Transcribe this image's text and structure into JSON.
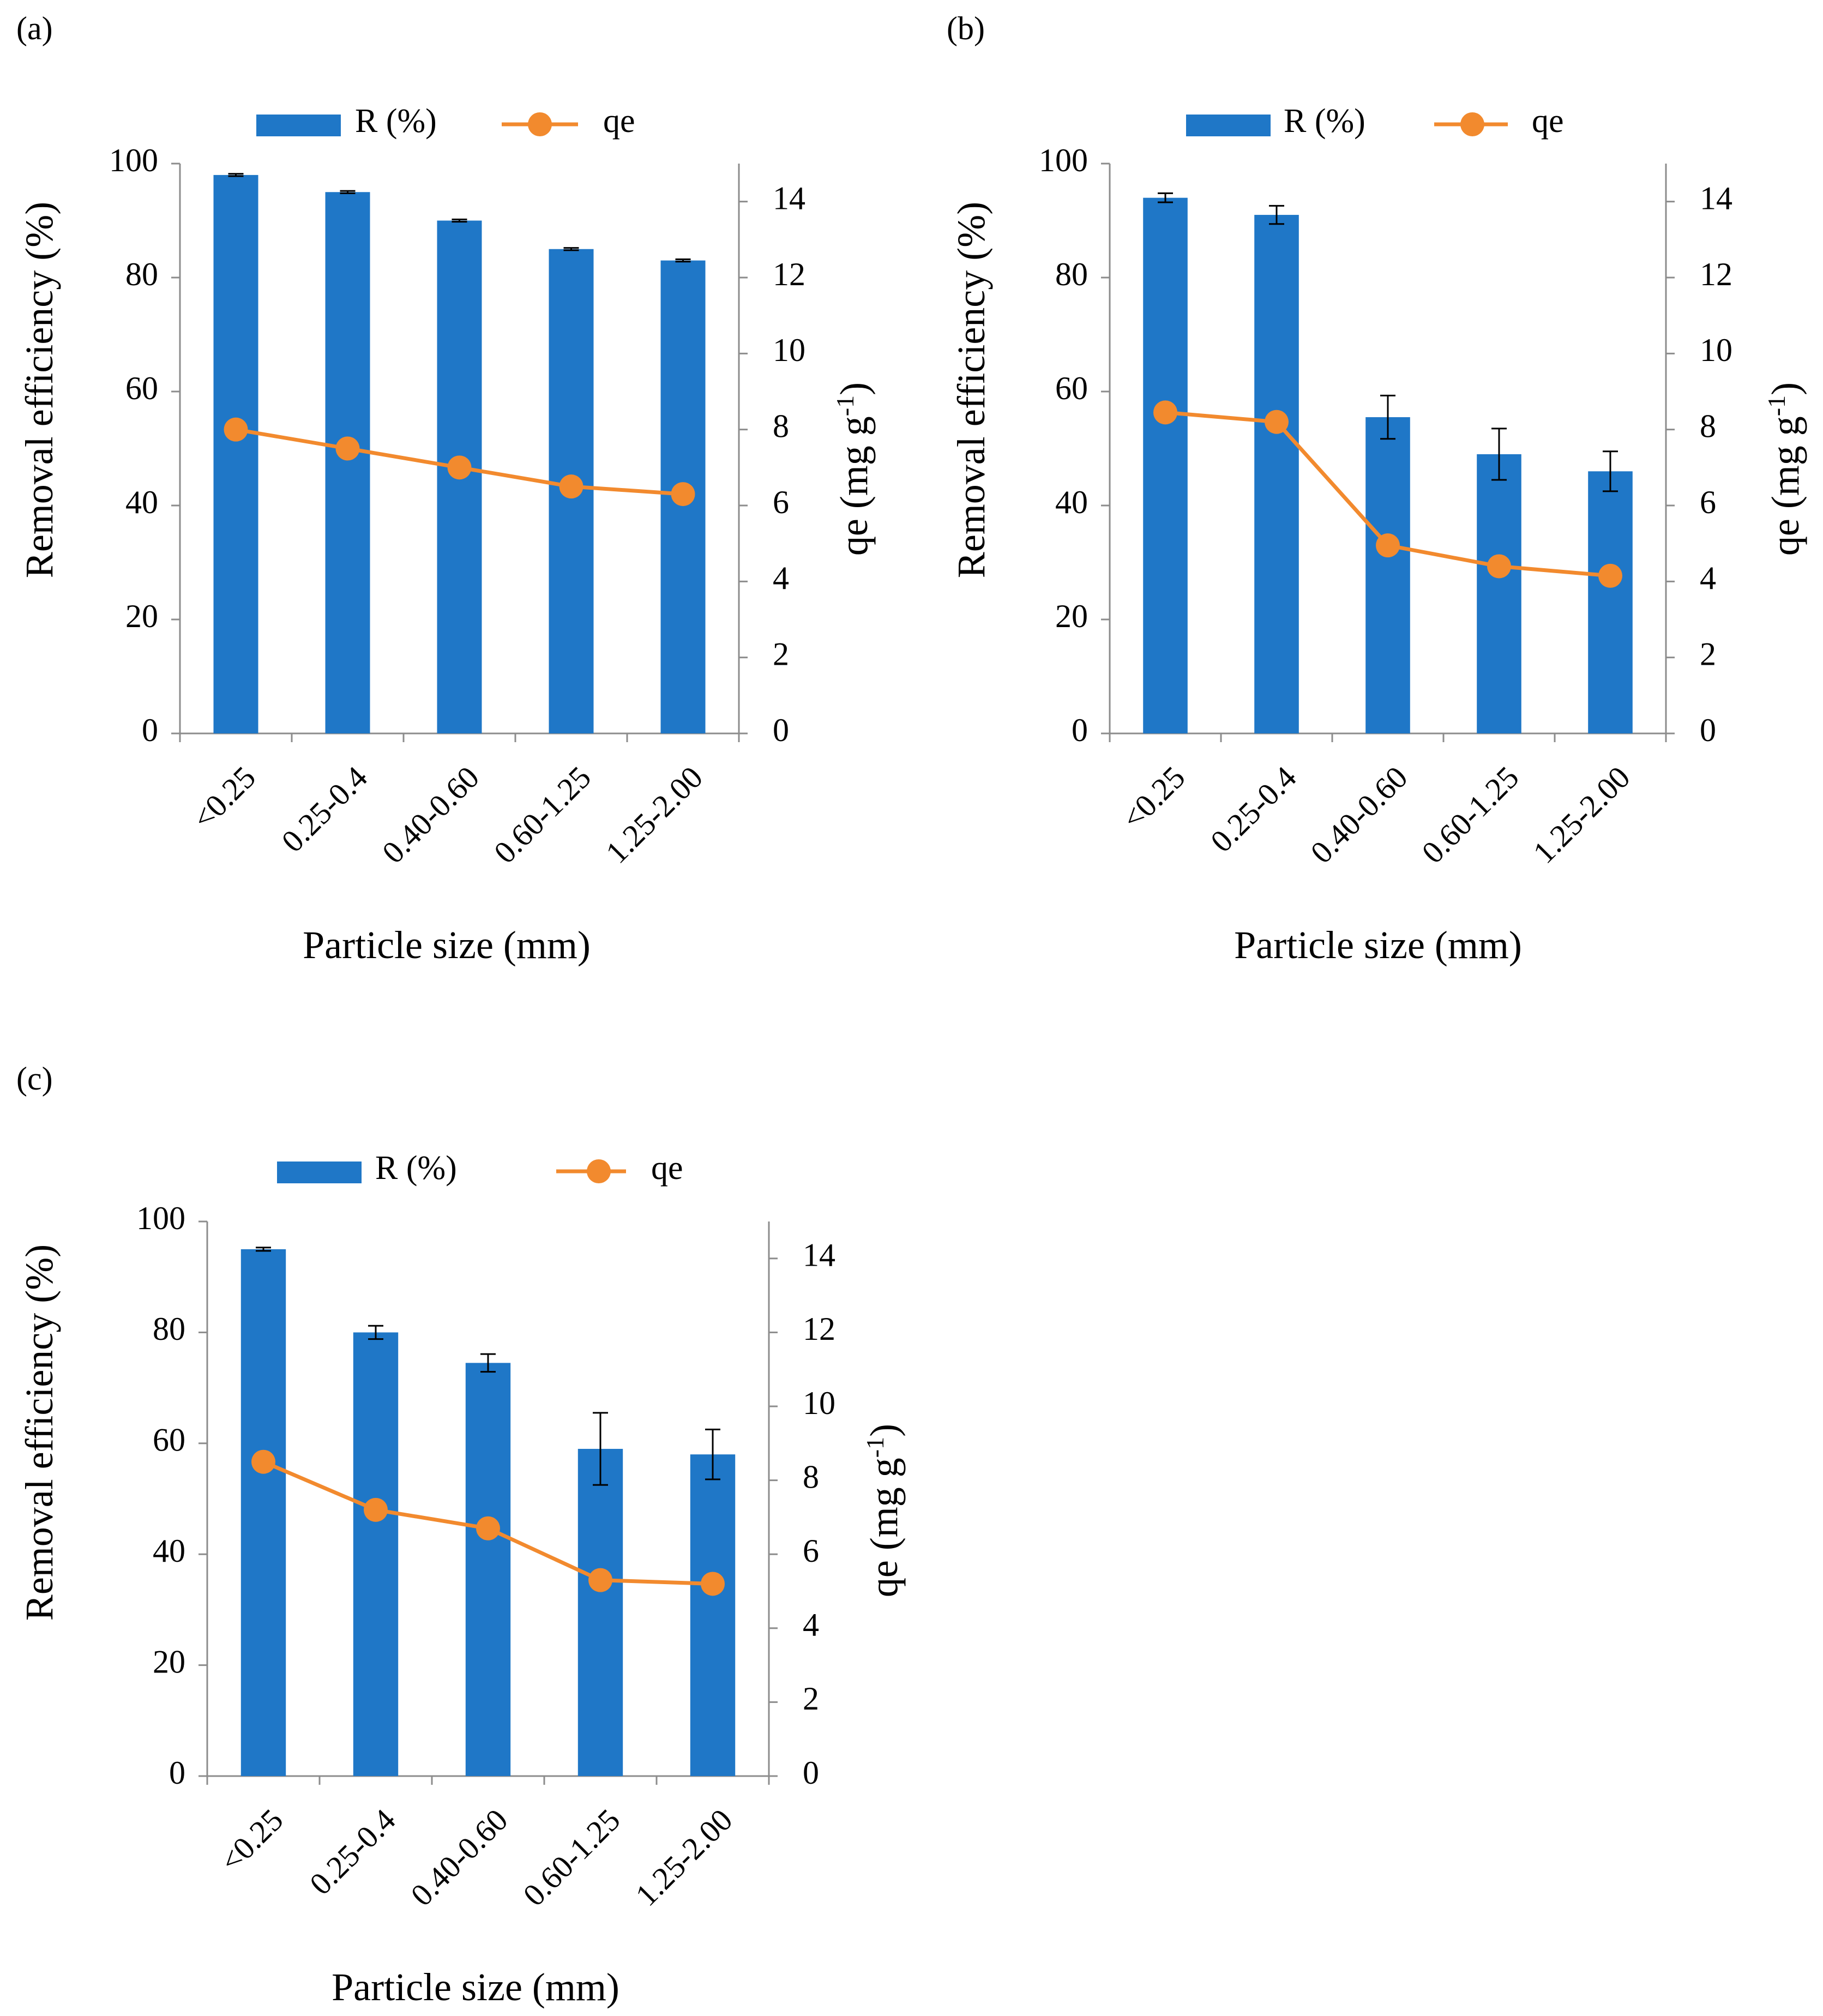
{
  "figure": {
    "panels": [
      {
        "label": "(a)",
        "label_letter": "a",
        "colors": {
          "bar": "#1f77c7",
          "line": "#f28a2e",
          "error": "#000000"
        },
        "chart_data": {
          "type": "bar",
          "categories": [
            "<0.25",
            "0.25-0.4",
            "0.40-0.60",
            "0.60-1.25",
            "1.25-2.00"
          ],
          "xlabel": "Particle size (mm)",
          "ylabel": "Removal efficiency (%)",
          "y2label_main": "qe (mg g",
          "y2label_sup": "-1",
          "y2label_close": ")",
          "ylim": [
            0,
            100
          ],
          "y2lim": [
            0,
            15
          ],
          "yticks": [
            0,
            20,
            40,
            60,
            80,
            100
          ],
          "y2ticks": [
            0,
            2,
            4,
            6,
            8,
            10,
            12,
            14
          ],
          "legend": [
            "R (%)",
            "qe"
          ],
          "series": [
            {
              "name": "R (%)",
              "type": "bar",
              "axis": "left",
              "values": [
                98,
                95,
                90,
                85,
                83
              ],
              "errors": [
                0.2,
                0.2,
                0.2,
                0.2,
                0.2
              ]
            },
            {
              "name": "qe",
              "type": "line",
              "axis": "right",
              "values": [
                8.0,
                7.5,
                7.0,
                6.5,
                6.3
              ]
            }
          ]
        }
      },
      {
        "label": "(b)",
        "label_letter": "b",
        "colors": {
          "bar": "#1f77c7",
          "line": "#f28a2e",
          "error": "#000000"
        },
        "chart_data": {
          "type": "bar",
          "categories": [
            "<0.25",
            "0.25-0.4",
            "0.40-0.60",
            "0.60-1.25",
            "1.25-2.00"
          ],
          "xlabel": "Particle size (mm)",
          "ylabel": "Removal efficiency (%)",
          "y2label_main": "qe (mg g",
          "y2label_sup": "-1",
          "y2label_close": ")",
          "ylim": [
            0,
            100
          ],
          "y2lim": [
            0,
            15
          ],
          "yticks": [
            0,
            20,
            40,
            60,
            80,
            100
          ],
          "y2ticks": [
            0,
            2,
            4,
            6,
            8,
            10,
            12,
            14
          ],
          "legend": [
            "R (%)",
            "qe"
          ],
          "series": [
            {
              "name": "R (%)",
              "type": "bar",
              "axis": "left",
              "values": [
                94,
                91,
                55.5,
                49,
                46
              ],
              "errors": [
                0.8,
                1.6,
                3.8,
                4.5,
                3.5
              ]
            },
            {
              "name": "qe",
              "type": "line",
              "axis": "right",
              "values": [
                8.45,
                8.2,
                4.95,
                4.4,
                4.15
              ]
            }
          ]
        }
      },
      {
        "label": "(c)",
        "label_letter": "c",
        "colors": {
          "bar": "#1f77c7",
          "line": "#f28a2e",
          "error": "#000000"
        },
        "chart_data": {
          "type": "bar",
          "categories": [
            "<0.25",
            "0.25-0.4",
            "0.40-0.60",
            "0.60-1.25",
            "1.25-2.00"
          ],
          "xlabel": "Particle size (mm)",
          "ylabel": "Removal efficiency (%)",
          "y2label_main": "qe (mg g",
          "y2label_sup": "-1",
          "y2label_close": ")",
          "ylim": [
            0,
            100
          ],
          "y2lim": [
            0,
            15
          ],
          "yticks": [
            0,
            20,
            40,
            60,
            80,
            100
          ],
          "y2ticks": [
            0,
            2,
            4,
            6,
            8,
            10,
            12,
            14
          ],
          "legend": [
            "R (%)",
            "qe"
          ],
          "series": [
            {
              "name": "R (%)",
              "type": "bar",
              "axis": "left",
              "values": [
                95,
                80,
                74.5,
                59,
                58
              ],
              "errors": [
                0.3,
                1.2,
                1.6,
                6.5,
                4.5
              ]
            },
            {
              "name": "qe",
              "type": "line",
              "axis": "right",
              "values": [
                8.5,
                7.2,
                6.7,
                5.3,
                5.2
              ]
            }
          ]
        }
      }
    ]
  }
}
